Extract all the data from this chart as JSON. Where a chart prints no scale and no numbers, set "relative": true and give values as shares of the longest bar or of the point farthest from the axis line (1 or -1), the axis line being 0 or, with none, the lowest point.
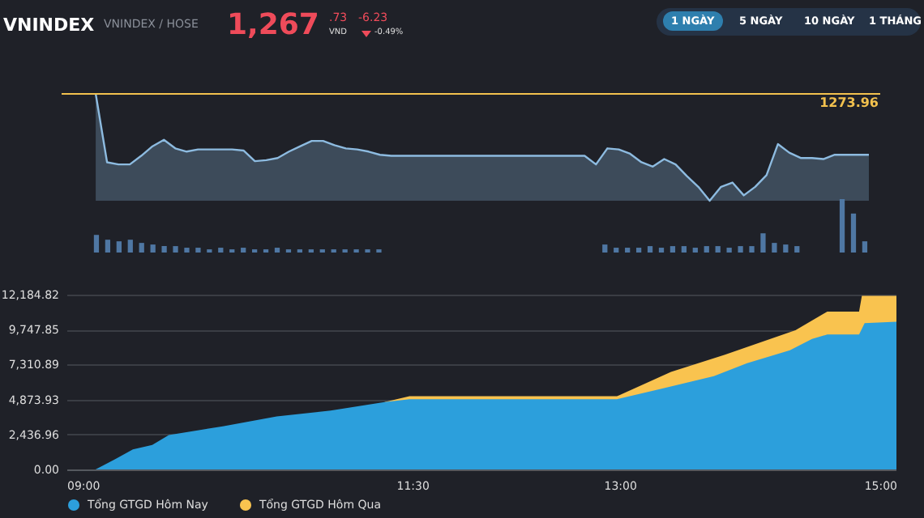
{
  "chart_data": [
    {
      "type": "other",
      "title": "VNINDEX",
      "subtitle": "VNINDEX / HOSE",
      "annotations": [
        "1,267",
        ".73",
        "VND",
        "-6.23",
        "-0.49%",
        "1 NGÀY",
        "5 NGÀY",
        "10 NGÀY",
        "1 THÁNG"
      ]
    },
    {
      "type": "area",
      "relative": true,
      "categories": [
        null,
        null,
        null,
        null,
        null,
        null,
        null,
        null,
        null,
        null,
        null,
        null,
        null,
        null,
        null,
        null,
        null,
        null,
        null,
        null,
        null,
        null,
        null,
        null,
        null,
        null,
        null,
        null,
        null,
        null,
        null,
        null,
        null,
        null,
        null,
        null,
        null,
        null,
        null,
        null,
        null,
        null,
        null,
        null,
        null,
        null,
        null,
        null,
        null,
        null,
        null,
        null,
        null,
        null,
        null,
        null,
        null,
        null,
        null,
        null,
        null,
        null,
        null,
        null,
        null,
        null,
        null,
        null,
        null,
        null,
        null,
        null,
        null
      ],
      "ref_lines": [
        {
          "axis": "y",
          "value": 1,
          "color": "#f2c14e"
        }
      ],
      "annotations": [
        "1273.96"
      ],
      "series": [
        {
          "color": "#8dbbe0",
          "values": [
            null,
            null,
            null,
            1,
            0.36,
            0.34,
            0.34,
            0.42,
            0.51,
            0.57,
            0.49,
            0.46,
            0.48,
            0.48,
            0.48,
            0.48,
            0.47,
            0.37,
            0.38,
            0.4,
            0.46,
            0.51,
            0.56,
            0.56,
            0.52,
            0.49,
            0.48,
            0.46,
            0.43,
            0.42,
            0.42,
            0.42,
            0.42,
            0.42,
            0.42,
            0.42,
            0.42,
            0.42,
            0.42,
            0.42,
            0.42,
            0.42,
            0.42,
            0.42,
            0.42,
            0.42,
            0.42,
            0.34,
            0.49,
            0.48,
            0.44,
            0.36,
            0.32,
            0.39,
            0.34,
            0.23,
            0.13,
            0,
            0.13,
            0.17,
            0.05,
            0.13,
            0.24,
            0.53,
            0.45,
            0.4,
            0.4,
            0.39,
            0.43,
            0.43,
            0.43,
            0.43,
            null
          ]
        }
      ]
    },
    {
      "type": "bar",
      "relative": true,
      "categories": [
        null,
        null,
        null,
        null,
        null,
        null,
        null,
        null,
        null,
        null,
        null,
        null,
        null,
        null,
        null,
        null,
        null,
        null,
        null,
        null,
        null,
        null,
        null,
        null,
        null,
        null,
        null,
        null,
        null,
        null,
        null,
        null,
        null,
        null,
        null,
        null,
        null,
        null,
        null,
        null,
        null,
        null,
        null,
        null,
        null,
        null,
        null,
        null,
        null,
        null,
        null,
        null,
        null,
        null,
        null,
        null,
        null,
        null,
        null,
        null,
        null,
        null,
        null,
        null,
        null,
        null,
        null,
        null,
        null,
        null,
        null,
        null,
        null
      ],
      "series": [
        {
          "color": "#4f77a3",
          "values": [
            0,
            0,
            0,
            0.33,
            0.24,
            0.21,
            0.24,
            0.18,
            0.15,
            0.12,
            0.12,
            0.09,
            0.09,
            0.06,
            0.09,
            0.06,
            0.09,
            0.06,
            0.06,
            0.09,
            0.06,
            0.06,
            0.06,
            0.06,
            0.06,
            0.06,
            0.06,
            0.06,
            0.06,
            0,
            0,
            0,
            0,
            0,
            0,
            0,
            0,
            0,
            0,
            0,
            0,
            0,
            0,
            0,
            0,
            0,
            0,
            0,
            0.15,
            0.09,
            0.09,
            0.09,
            0.12,
            0.09,
            0.12,
            0.12,
            0.09,
            0.12,
            0.12,
            0.09,
            0.12,
            0.12,
            0.36,
            0.18,
            0.15,
            0.12,
            0,
            0,
            0,
            1,
            0.73,
            0.21,
            0
          ]
        }
      ]
    },
    {
      "type": "area",
      "xlim": [
        9,
        15
      ],
      "ylim": [
        0,
        12184.82
      ],
      "grid": "y",
      "legend": "bottom",
      "xticks": [
        {
          "value": 9,
          "label": "09:00"
        },
        {
          "value": 11.5,
          "label": "11:30"
        },
        {
          "value": 13,
          "label": "13:00"
        },
        {
          "value": 15,
          "label": "15:00"
        }
      ],
      "yticks": [
        {
          "value": 0,
          "label": "0.00"
        },
        {
          "value": 2436.96,
          "label": "2,436.96"
        },
        {
          "value": 4873.93,
          "label": "4,873.93"
        },
        {
          "value": 7310.89,
          "label": "7,310.89"
        },
        {
          "value": 9747.85,
          "label": "9,747.85"
        },
        {
          "value": 12184.82,
          "label": "12,184.82"
        }
      ],
      "series": [
        {
          "name": "Tổng GTGD Hôm Nay",
          "color": "#2c9fdc",
          "x": [
            9.0,
            9.21,
            9.35,
            9.48,
            9.62,
            9.74,
            9.93,
            10.13,
            10.52,
            10.91,
            11.3,
            11.48,
            12.98,
            13.29,
            13.68,
            13.92,
            14.23,
            14.39,
            14.5,
            14.73,
            14.77,
            15.0
          ],
          "values": [
            0,
            0,
            700,
            1400,
            1700,
            2400,
            2700,
            3000,
            3700,
            4100,
            4700,
            4900,
            4900,
            5600,
            6500,
            7400,
            8300,
            9100,
            9400,
            9400,
            10200,
            10300
          ]
        },
        {
          "name": "Tổng GTGD Hôm Qua",
          "color": "#f9c34f",
          "x": [
            11.3,
            11.48,
            12.98,
            13.37,
            13.76,
            14.0,
            14.27,
            14.5,
            14.73,
            14.75,
            15.0
          ],
          "values": [
            4700,
            5100,
            5100,
            6800,
            8000,
            8800,
            9700,
            11000,
            11000,
            12100,
            12100
          ]
        }
      ]
    }
  ]
}
